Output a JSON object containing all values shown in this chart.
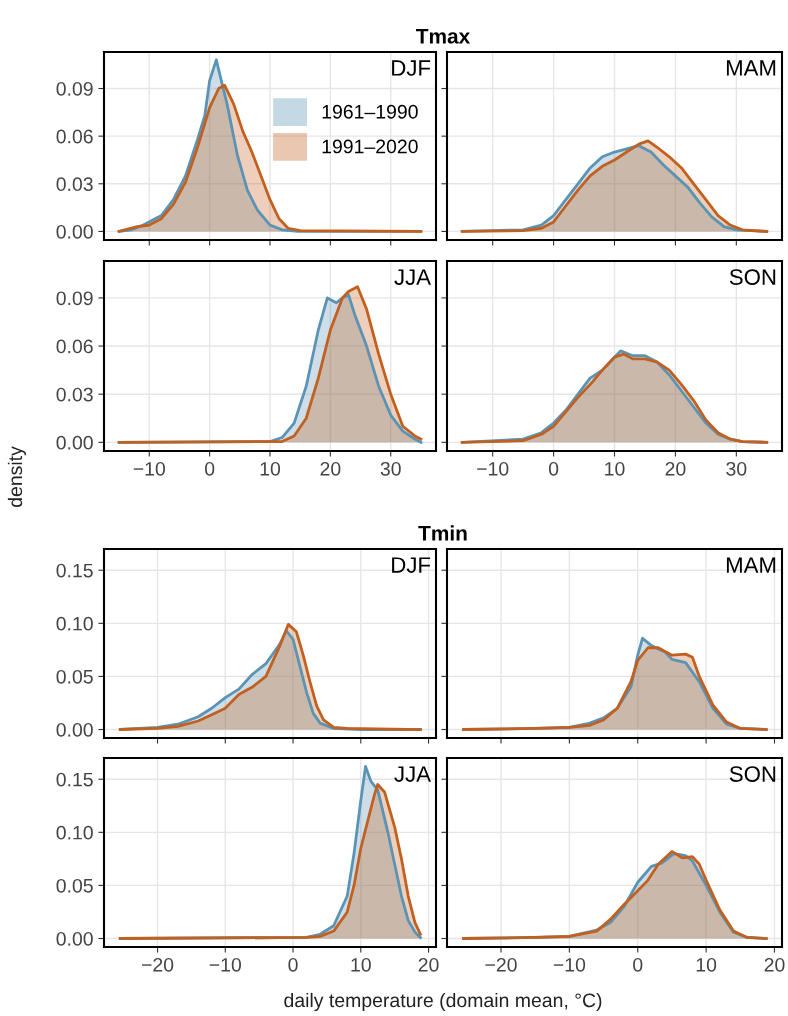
{
  "chart_data": [
    {
      "type": "area",
      "title": "DJF",
      "annotations": [
        "Tmax"
      ],
      "legend": "top right",
      "grid": true,
      "tick_labels": "y",
      "xlim": [
        -17.5,
        37.5
      ],
      "ylim": [
        -0.0054,
        0.113
      ],
      "xticks": [
        {
          "value": -10,
          "label": null
        },
        {
          "value": 0,
          "label": null
        },
        {
          "value": 10,
          "label": null
        },
        {
          "value": 20,
          "label": null
        },
        {
          "value": 30,
          "label": null
        }
      ],
      "yticks": [
        {
          "value": 0,
          "label": "0.00"
        },
        {
          "value": 0.03,
          "label": "0.03"
        },
        {
          "value": 0.06,
          "label": "0.06"
        },
        {
          "value": 0.09,
          "label": "0.09"
        }
      ],
      "series": [
        {
          "name": "1961–1990",
          "color": "#5b93b5",
          "x": [
            -15,
            -13,
            -11,
            -8,
            -6,
            -4,
            -2,
            -0.8,
            0,
            1.1,
            2.9,
            4.6,
            6.25,
            7.9,
            10,
            12,
            14.6,
            35
          ],
          "values": [
            0,
            0.001,
            0.004,
            0.01,
            0.02,
            0.035,
            0.058,
            0.073,
            0.095,
            0.108,
            0.08,
            0.048,
            0.026,
            0.0135,
            0.004,
            0.001,
            0,
            0
          ]
        },
        {
          "name": "1991–2020",
          "color": "#c2601f",
          "x": [
            -15,
            -12,
            -10,
            -8,
            -6,
            -4,
            -2,
            0,
            1.5,
            2.5,
            4,
            5.5,
            7,
            8.5,
            10,
            11.5,
            13,
            15,
            35
          ],
          "values": [
            0,
            0.003,
            0.004,
            0.008,
            0.017,
            0.031,
            0.053,
            0.078,
            0.09,
            0.092,
            0.08,
            0.063,
            0.05,
            0.035,
            0.02,
            0.008,
            0.002,
            0.0005,
            0
          ]
        }
      ]
    },
    {
      "type": "area",
      "title": "MAM",
      "grid": true,
      "tick_labels": false,
      "xlim": [
        -17.5,
        37.5
      ],
      "ylim": [
        -0.0054,
        0.113
      ],
      "xticks": [
        {
          "value": -10,
          "label": null
        },
        {
          "value": 0,
          "label": null
        },
        {
          "value": 10,
          "label": null
        },
        {
          "value": 20,
          "label": null
        },
        {
          "value": 30,
          "label": null
        }
      ],
      "yticks": [
        {
          "value": 0,
          "label": null
        },
        {
          "value": 0.03,
          "label": null
        },
        {
          "value": 0.06,
          "label": null
        },
        {
          "value": 0.09,
          "label": null
        }
      ],
      "series": [
        {
          "color": "#5b93b5",
          "x": [
            -15,
            -5,
            -2,
            0,
            2,
            4,
            6,
            8,
            10,
            12,
            14,
            16,
            18,
            20,
            22,
            24,
            26,
            28,
            30,
            35
          ],
          "values": [
            0,
            0.001,
            0.004,
            0.01,
            0.02,
            0.03,
            0.04,
            0.047,
            0.05,
            0.052,
            0.054,
            0.05,
            0.042,
            0.035,
            0.028,
            0.018,
            0.009,
            0.003,
            0.001,
            0
          ]
        },
        {
          "color": "#c2601f",
          "x": [
            -15,
            -5,
            -2,
            0,
            2,
            4,
            6,
            8,
            10,
            12,
            14,
            15.5,
            17,
            19,
            21,
            23,
            25,
            27,
            29,
            31,
            35
          ],
          "values": [
            0,
            0.0005,
            0.002,
            0.006,
            0.016,
            0.026,
            0.035,
            0.041,
            0.045,
            0.05,
            0.055,
            0.057,
            0.053,
            0.047,
            0.04,
            0.03,
            0.02,
            0.01,
            0.004,
            0.001,
            0
          ]
        }
      ]
    },
    {
      "type": "area",
      "title": "JJA",
      "ylabel": "density",
      "grid": true,
      "xlim": [
        -17.5,
        37.5
      ],
      "ylim": [
        -0.0054,
        0.113
      ],
      "xticks": [
        {
          "value": -10,
          "label": "−10"
        },
        0,
        10,
        20,
        30
      ],
      "yticks": [
        {
          "value": 0,
          "label": "0.00"
        },
        {
          "value": 0.03,
          "label": "0.03"
        },
        {
          "value": 0.06,
          "label": "0.06"
        },
        {
          "value": 0.09,
          "label": "0.09"
        }
      ],
      "series": [
        {
          "color": "#5b93b5",
          "x": [
            -15,
            10,
            12,
            14,
            16,
            18,
            19.5,
            21,
            22,
            23,
            24,
            26,
            28,
            30,
            32,
            34,
            35
          ],
          "values": [
            0,
            0.0005,
            0.003,
            0.012,
            0.035,
            0.07,
            0.09,
            0.087,
            0.09,
            0.092,
            0.08,
            0.06,
            0.035,
            0.017,
            0.007,
            0.002,
            0
          ]
        },
        {
          "color": "#c2601f",
          "x": [
            -15,
            12,
            14,
            16,
            18,
            20,
            22,
            23,
            24.5,
            26,
            28,
            30,
            32,
            34,
            35
          ],
          "values": [
            0,
            0.0005,
            0.004,
            0.015,
            0.04,
            0.07,
            0.09,
            0.094,
            0.097,
            0.083,
            0.055,
            0.03,
            0.01,
            0.004,
            0.002
          ]
        }
      ]
    },
    {
      "type": "area",
      "title": "SON",
      "grid": true,
      "tick_labels": "x",
      "xlim": [
        -17.5,
        37.5
      ],
      "ylim": [
        -0.0054,
        0.113
      ],
      "xticks": [
        {
          "value": -10,
          "label": "−10"
        },
        0,
        10,
        20,
        30
      ],
      "yticks": [
        {
          "value": 0,
          "label": null
        },
        {
          "value": 0.03,
          "label": null
        },
        {
          "value": 0.06,
          "label": null
        },
        {
          "value": 0.09,
          "label": null
        }
      ],
      "series": [
        {
          "color": "#5b93b5",
          "x": [
            -15,
            -5,
            -2,
            0,
            2,
            4,
            6,
            8,
            10,
            11,
            13,
            15,
            17,
            19,
            21,
            23,
            25,
            27,
            29,
            31,
            35
          ],
          "values": [
            0,
            0.002,
            0.006,
            0.012,
            0.02,
            0.03,
            0.04,
            0.045,
            0.053,
            0.057,
            0.054,
            0.054,
            0.05,
            0.042,
            0.032,
            0.022,
            0.012,
            0.005,
            0.002,
            0.0005,
            0
          ]
        },
        {
          "color": "#c2601f",
          "x": [
            -15,
            -5,
            -2,
            0,
            2,
            4,
            6,
            8,
            10,
            11.5,
            13,
            15,
            17,
            19,
            21,
            23,
            25,
            27,
            29,
            31,
            35
          ],
          "values": [
            0,
            0.001,
            0.005,
            0.01,
            0.019,
            0.028,
            0.036,
            0.045,
            0.053,
            0.055,
            0.052,
            0.052,
            0.05,
            0.045,
            0.036,
            0.026,
            0.014,
            0.006,
            0.002,
            0.0005,
            0
          ]
        }
      ]
    },
    {
      "type": "area",
      "title": "DJF",
      "annotations": [
        "Tmin"
      ],
      "grid": true,
      "tick_labels": "y",
      "xlim": [
        -27.9,
        21.1
      ],
      "ylim": [
        -0.008,
        0.17
      ],
      "xticks": [
        {
          "value": -20,
          "label": null
        },
        {
          "value": -10,
          "label": null
        },
        {
          "value": 0,
          "label": null
        },
        {
          "value": 10,
          "label": null
        },
        {
          "value": 20,
          "label": null
        }
      ],
      "yticks": [
        {
          "value": 0,
          "label": "0.00"
        },
        {
          "value": 0.05,
          "label": "0.05"
        },
        {
          "value": 0.1,
          "label": "0.10"
        },
        {
          "value": 0.15,
          "label": "0.15"
        }
      ],
      "series": [
        {
          "color": "#5b93b5",
          "x": [
            -25.5,
            -20,
            -17,
            -14,
            -12,
            -10,
            -8,
            -6,
            -4,
            -2,
            -1,
            0,
            1,
            2,
            3,
            4,
            6,
            10,
            18.8
          ],
          "values": [
            0,
            0.002,
            0.005,
            0.012,
            0.02,
            0.03,
            0.038,
            0.052,
            0.062,
            0.08,
            0.093,
            0.085,
            0.06,
            0.035,
            0.015,
            0.006,
            0.001,
            0,
            0
          ]
        },
        {
          "color": "#c2601f",
          "x": [
            -25.5,
            -20,
            -17,
            -14,
            -12,
            -10,
            -8,
            -6,
            -4,
            -2,
            -0.7,
            0.5,
            1.5,
            2.5,
            3.5,
            4.5,
            6,
            8,
            18.8
          ],
          "values": [
            0,
            0.001,
            0.003,
            0.008,
            0.014,
            0.02,
            0.033,
            0.04,
            0.05,
            0.078,
            0.099,
            0.092,
            0.07,
            0.045,
            0.022,
            0.009,
            0.002,
            0.001,
            0
          ]
        }
      ]
    },
    {
      "type": "area",
      "title": "MAM",
      "grid": true,
      "tick_labels": false,
      "xlim": [
        -27.9,
        21.1
      ],
      "ylim": [
        -0.008,
        0.17
      ],
      "xticks": [
        {
          "value": -20,
          "label": null
        },
        {
          "value": -10,
          "label": null
        },
        {
          "value": 0,
          "label": null
        },
        {
          "value": 10,
          "label": null
        },
        {
          "value": 20,
          "label": null
        }
      ],
      "yticks": [
        {
          "value": 0,
          "label": null
        },
        {
          "value": 0.05,
          "label": null
        },
        {
          "value": 0.1,
          "label": null
        },
        {
          "value": 0.15,
          "label": null
        }
      ],
      "series": [
        {
          "color": "#5b93b5",
          "x": [
            -25.5,
            -15,
            -10,
            -7,
            -5,
            -3,
            -1,
            0,
            0.7,
            2,
            4,
            5,
            7,
            9,
            11,
            13,
            15,
            18.8
          ],
          "values": [
            0,
            0.001,
            0.002,
            0.006,
            0.011,
            0.02,
            0.04,
            0.07,
            0.086,
            0.079,
            0.073,
            0.066,
            0.063,
            0.045,
            0.02,
            0.005,
            0.001,
            0
          ]
        },
        {
          "color": "#c2601f",
          "x": [
            -25.5,
            -15,
            -10,
            -7,
            -5,
            -3,
            -1,
            0,
            1.5,
            3,
            5,
            7,
            8,
            9,
            11,
            13,
            15,
            18.8
          ],
          "values": [
            0,
            0.001,
            0.002,
            0.004,
            0.009,
            0.02,
            0.045,
            0.065,
            0.077,
            0.077,
            0.07,
            0.071,
            0.068,
            0.05,
            0.023,
            0.007,
            0.001,
            0
          ]
        }
      ]
    },
    {
      "type": "area",
      "title": "JJA",
      "xlabel": "daily temperature (domain mean, °C)",
      "grid": true,
      "xlim": [
        -27.9,
        21.1
      ],
      "ylim": [
        -0.008,
        0.17
      ],
      "xticks": [
        {
          "value": -20,
          "label": "−20"
        },
        {
          "value": -10,
          "label": "−10"
        },
        0,
        10,
        20
      ],
      "yticks": [
        {
          "value": 0,
          "label": "0.00"
        },
        {
          "value": 0.05,
          "label": "0.05"
        },
        {
          "value": 0.1,
          "label": "0.10"
        },
        {
          "value": 0.15,
          "label": "0.15"
        }
      ],
      "series": [
        {
          "color": "#5b93b5",
          "x": [
            -25.5,
            2,
            4,
            6,
            8,
            9,
            10,
            10.7,
            11.5,
            12.5,
            14,
            15,
            16,
            17,
            18,
            18.8
          ],
          "values": [
            0,
            0.001,
            0.004,
            0.012,
            0.04,
            0.08,
            0.13,
            0.162,
            0.148,
            0.14,
            0.1,
            0.07,
            0.04,
            0.017,
            0.006,
            0.001
          ]
        },
        {
          "color": "#c2601f",
          "x": [
            -25.5,
            2,
            4,
            6,
            8,
            9,
            10,
            11,
            12,
            12.5,
            13.5,
            15,
            16,
            17,
            18,
            18.8
          ],
          "values": [
            0,
            0.001,
            0.002,
            0.007,
            0.025,
            0.05,
            0.085,
            0.11,
            0.135,
            0.145,
            0.138,
            0.105,
            0.075,
            0.04,
            0.015,
            0.004
          ]
        }
      ]
    },
    {
      "type": "area",
      "title": "SON",
      "grid": true,
      "tick_labels": "x",
      "xlim": [
        -27.9,
        21.1
      ],
      "ylim": [
        -0.008,
        0.17
      ],
      "xticks": [
        {
          "value": -20,
          "label": "−20"
        },
        {
          "value": -10,
          "label": "−10"
        },
        0,
        10,
        20
      ],
      "yticks": [
        {
          "value": 0,
          "label": null
        },
        {
          "value": 0.05,
          "label": null
        },
        {
          "value": 0.1,
          "label": null
        },
        {
          "value": 0.15,
          "label": null
        }
      ],
      "series": [
        {
          "color": "#5b93b5",
          "x": [
            -25.5,
            -15,
            -10,
            -6,
            -4,
            -2,
            0,
            2,
            3.5,
            5.3,
            7,
            8,
            10,
            12,
            14,
            16,
            18.8
          ],
          "values": [
            0,
            0.001,
            0.002,
            0.008,
            0.015,
            0.03,
            0.053,
            0.068,
            0.071,
            0.08,
            0.078,
            0.073,
            0.05,
            0.025,
            0.006,
            0.001,
            0
          ]
        },
        {
          "color": "#c2601f",
          "x": [
            -25.5,
            -15,
            -10,
            -6,
            -4,
            -2,
            0,
            1.5,
            3,
            5,
            6.5,
            8,
            9,
            10,
            12,
            14,
            16,
            18.8
          ],
          "values": [
            0,
            0.001,
            0.002,
            0.007,
            0.018,
            0.032,
            0.045,
            0.055,
            0.07,
            0.082,
            0.076,
            0.077,
            0.07,
            0.055,
            0.027,
            0.007,
            0.001,
            0
          ]
        }
      ]
    }
  ]
}
